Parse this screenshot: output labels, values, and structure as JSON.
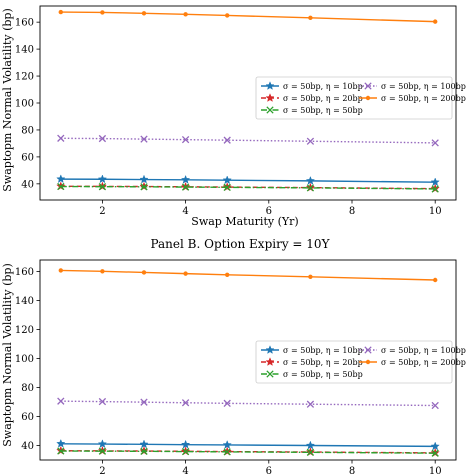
{
  "chart_data": [
    {
      "type": "line",
      "title": "",
      "xlabel": "Swap Maturity (Yr)",
      "ylabel": "Swaptopm Normal Volatility (bp)",
      "xlim": [
        0.5,
        10.5
      ],
      "ylim": [
        28,
        172
      ],
      "xticks": [
        2,
        4,
        6,
        8,
        10
      ],
      "yticks": [
        40,
        60,
        80,
        100,
        120,
        140,
        160
      ],
      "grid": false,
      "legend_position": "right, middle",
      "x": [
        1,
        2,
        3,
        4,
        5,
        7,
        10
      ],
      "series": [
        {
          "name": "σ = 50bp, η = 10bp",
          "color": "#1f77b4",
          "marker": "star",
          "dash": "solid",
          "values": [
            43.5,
            43.4,
            43.2,
            43.0,
            42.7,
            42.2,
            41.2
          ]
        },
        {
          "name": "σ = 50bp, η = 20bp",
          "color": "#d62728",
          "marker": "star",
          "dash": "dashed",
          "values": [
            38.2,
            38.1,
            38.0,
            37.8,
            37.6,
            37.2,
            36.4
          ]
        },
        {
          "name": "σ = 50bp, η = 50bp",
          "color": "#2ca02c",
          "marker": "x",
          "dash": "dashdot",
          "values": [
            38.0,
            37.9,
            37.8,
            37.6,
            37.4,
            37.0,
            36.2
          ]
        },
        {
          "name": "σ = 50bp, η = 100bp",
          "color": "#9467bd",
          "marker": "x",
          "dash": "dotted",
          "values": [
            73.8,
            73.6,
            73.2,
            72.8,
            72.4,
            71.6,
            70.4
          ]
        },
        {
          "name": "σ = 50bp, η = 200bp",
          "color": "#ff7f0e",
          "marker": "dot",
          "dash": "solid",
          "values": [
            167.5,
            167.2,
            166.6,
            165.8,
            165.0,
            163.2,
            160.4
          ]
        }
      ]
    },
    {
      "type": "line",
      "title": "Panel B. Option Expiry = 10Y",
      "xlabel": "",
      "ylabel": "Swaptopm Normal Volatility (bp)",
      "xlim": [
        0.5,
        10.5
      ],
      "ylim": [
        30,
        168
      ],
      "xticks": [
        2,
        4,
        6,
        8,
        10
      ],
      "yticks": [
        40,
        60,
        80,
        100,
        120,
        140,
        160
      ],
      "grid": false,
      "legend_position": "right, middle",
      "x": [
        1,
        2,
        3,
        4,
        5,
        7,
        10
      ],
      "series": [
        {
          "name": "σ = 50bp, η = 10bp",
          "color": "#1f77b4",
          "marker": "star",
          "dash": "solid",
          "values": [
            41.2,
            41.0,
            40.8,
            40.6,
            40.4,
            40.0,
            39.4
          ]
        },
        {
          "name": "σ = 50bp, η = 20bp",
          "color": "#d62728",
          "marker": "star",
          "dash": "dashed",
          "values": [
            36.4,
            36.3,
            36.2,
            36.0,
            35.8,
            35.5,
            34.9
          ]
        },
        {
          "name": "σ = 50bp, η = 50bp",
          "color": "#2ca02c",
          "marker": "x",
          "dash": "dashdot",
          "values": [
            36.2,
            36.1,
            36.0,
            35.8,
            35.6,
            35.3,
            34.7
          ]
        },
        {
          "name": "σ = 50bp, η = 100bp",
          "color": "#9467bd",
          "marker": "x",
          "dash": "dotted",
          "values": [
            70.6,
            70.3,
            69.9,
            69.5,
            69.1,
            68.5,
            67.6
          ]
        },
        {
          "name": "σ = 50bp, η = 200bp",
          "color": "#ff7f0e",
          "marker": "dot",
          "dash": "solid",
          "values": [
            160.8,
            160.2,
            159.4,
            158.6,
            157.8,
            156.4,
            154.2
          ]
        }
      ]
    }
  ]
}
